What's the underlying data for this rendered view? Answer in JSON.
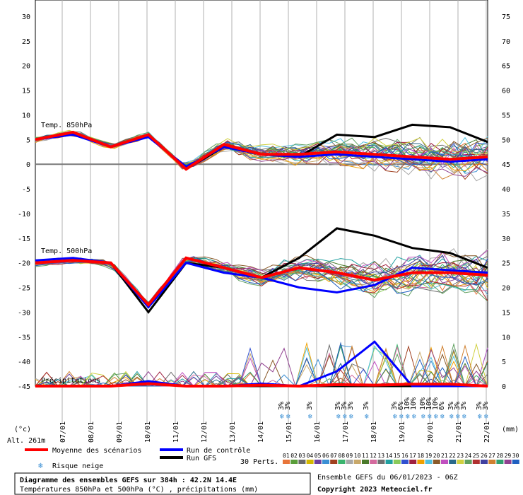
{
  "chart_data": {
    "type": "line",
    "x_dates": [
      "07/01",
      "08/01",
      "09/01",
      "10/01",
      "11/01",
      "12/01",
      "13/01",
      "14/01",
      "15/01",
      "16/01",
      "17/01",
      "18/01",
      "19/01",
      "20/01",
      "21/01",
      "22/01"
    ],
    "left_axis": {
      "unit": "(°c)",
      "ylim": [
        -45,
        30
      ],
      "ticks": [
        30,
        25,
        20,
        15,
        10,
        5,
        0,
        -5,
        -10,
        -15,
        -20,
        -25,
        -30,
        -35,
        -40,
        -45
      ]
    },
    "right_axis": {
      "unit": "(mm)",
      "ylim": [
        0,
        75
      ],
      "ticks": [
        75,
        70,
        65,
        60,
        55,
        50,
        45,
        40,
        35,
        30,
        25,
        20,
        15,
        10,
        5,
        0
      ]
    },
    "altitude": "Alt. 261m",
    "panel_labels": {
      "t850": "Temp. 850hPa",
      "t500": "Temp. 500hPa",
      "precip": "Précipitations"
    },
    "series": [
      {
        "name": "Moyenne des scénarios",
        "color": "#ff0000",
        "t850": [
          5,
          6.5,
          3.5,
          6,
          -1,
          4,
          2,
          2,
          2.5,
          2,
          1.5,
          1,
          1.5
        ],
        "t500": [
          -20,
          -19.5,
          -20,
          -28.5,
          -19,
          -21,
          -23,
          -21,
          -22,
          -23.5,
          -22,
          -22,
          -22.5
        ],
        "precip_mm": [
          0,
          0,
          0,
          0.5,
          0,
          0,
          0.2,
          0,
          0.3,
          0.2,
          0.4,
          0.4,
          0
        ]
      },
      {
        "name": "Run de contrôle",
        "color": "#0000ff",
        "t850": [
          5,
          6,
          3.5,
          5.5,
          -0.5,
          3.5,
          2,
          1.5,
          2,
          1.5,
          1,
          0.5,
          1
        ],
        "t500": [
          -19.5,
          -19,
          -20,
          -29,
          -20,
          -22,
          -23,
          -25,
          -26,
          -24.5,
          -21,
          -21.5,
          -22
        ],
        "precip_mm": [
          0,
          0,
          0,
          1,
          0,
          0,
          0.5,
          0,
          3,
          9,
          0,
          0,
          0
        ]
      },
      {
        "name": "Run GFS",
        "color": "#000000",
        "t850": [
          5,
          6.5,
          3.5,
          6,
          -1,
          3.5,
          2,
          1.5,
          6,
          5.5,
          8,
          7.5,
          4.5
        ],
        "t500": [
          -20,
          -19.5,
          -20,
          -30,
          -20,
          -21,
          -23,
          -19,
          -13,
          -14.5,
          -17,
          -18,
          -21
        ],
        "precip_mm": [
          0,
          0,
          0,
          0.5,
          0,
          0,
          0,
          0,
          0,
          0,
          0,
          0,
          0
        ]
      }
    ],
    "snow_risk_pct": [
      {
        "day": "15/01",
        "pct": "3%"
      },
      {
        "day": "15/01",
        "pct": "3%"
      },
      {
        "day": "16/01",
        "pct": "3%"
      },
      {
        "day": "17/01",
        "pct": "3%"
      },
      {
        "day": "17/01",
        "pct": "3%"
      },
      {
        "day": "17/01",
        "pct": "3%"
      },
      {
        "day": "18/01",
        "pct": "3%"
      },
      {
        "day": "19/01",
        "pct": "3%"
      },
      {
        "day": "19/01",
        "pct": "6%"
      },
      {
        "day": "19/01",
        "pct": "10%"
      },
      {
        "day": "19/01",
        "pct": "10%"
      },
      {
        "day": "20/01",
        "pct": "10%"
      },
      {
        "day": "20/01",
        "pct": "10%"
      },
      {
        "day": "20/01",
        "pct": "10%"
      },
      {
        "day": "20/01",
        "pct": "6%"
      },
      {
        "day": "21/01",
        "pct": "3%"
      },
      {
        "day": "21/01",
        "pct": "3%"
      },
      {
        "day": "21/01",
        "pct": "3%"
      },
      {
        "day": "22/01",
        "pct": "3%"
      },
      {
        "day": "22/01",
        "pct": "3%"
      }
    ],
    "member_colors": [
      "#e8753a",
      "#5a9e3a",
      "#6a6a6a",
      "#d4b800",
      "#6b3fa0",
      "#3a8fd4",
      "#a04020",
      "#3ab46e",
      "#a8a8a8",
      "#c8a86a",
      "#4a7a2a",
      "#d46a9e",
      "#707070",
      "#20a0a0",
      "#8aca5a",
      "#3050d0",
      "#a02040",
      "#f0a000",
      "#50c0e0",
      "#8a5a2a",
      "#c050c0",
      "#2a6a8a",
      "#d0d040",
      "#60a060",
      "#b03030",
      "#4040a0",
      "#d08030",
      "#30a070",
      "#904090",
      "#2060c0"
    ]
  },
  "legend": {
    "mean_label": "Moyenne des scénarios",
    "control_label": "Run de contrôle",
    "gfs_label": "Run GFS",
    "snow_label": "Risque neige",
    "perts_label": "30 Perts.",
    "perts_numbers": [
      "01",
      "02",
      "03",
      "04",
      "05",
      "06",
      "07",
      "08",
      "09",
      "10",
      "11",
      "12",
      "13",
      "14",
      "15",
      "16",
      "17",
      "18",
      "19",
      "20",
      "21",
      "22",
      "23",
      "24",
      "25",
      "26",
      "27",
      "28",
      "29",
      "30"
    ]
  },
  "footer": {
    "title": "Diagramme des ensembles GEFS sur 384h : 42.2N 14.4E",
    "subtitle": "Températures 850hPa et 500hPa (°C) , précipitations (mm)",
    "run": "Ensemble GEFS du 06/01/2023 - 06Z",
    "copyright": "Copyright 2023 Meteociel.fr"
  }
}
